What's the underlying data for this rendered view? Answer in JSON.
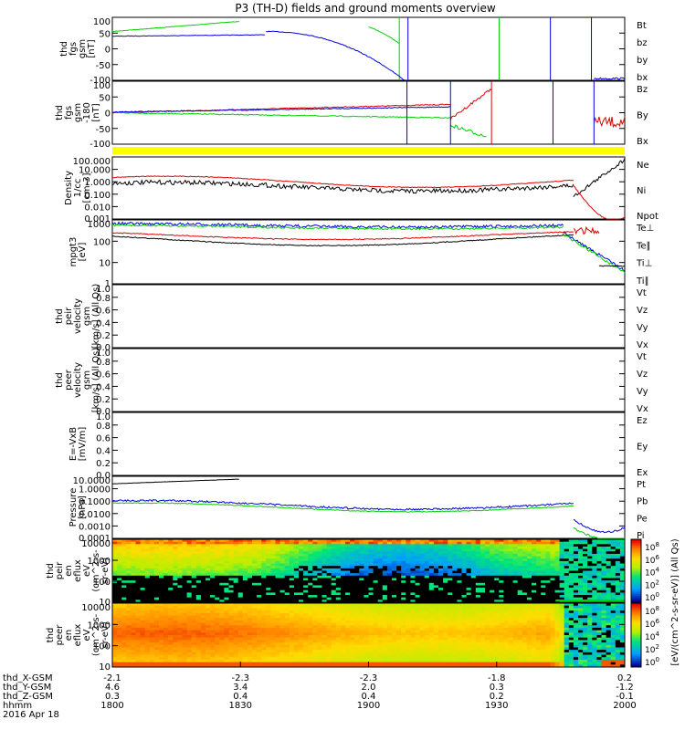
{
  "title": "P3 (TH-D) fields and ground moments overview",
  "colors": {
    "black": "#000000",
    "red": "#e00000",
    "green": "#00d000",
    "blue": "#0000e0",
    "yellow": "#ffff00"
  },
  "chart_data": [
    {
      "type": "line",
      "ylabel": [
        "thd",
        "fgs",
        "gsm",
        "[nT]"
      ],
      "ylim": [
        -100,
        100
      ],
      "yticks": [
        "100",
        "50",
        "0",
        "-50",
        "-100"
      ],
      "legend": [
        {
          "label": "Bt",
          "color": "#000000"
        },
        {
          "label": "bz",
          "color": "#e00000"
        },
        {
          "label": "by",
          "color": "#00d000"
        },
        {
          "label": "bx",
          "color": "#0000e0"
        }
      ]
    },
    {
      "type": "line",
      "ylabel": [
        "thd",
        "fgs",
        "gsm",
        "-180",
        "[nT]"
      ],
      "ylim": [
        -100,
        100
      ],
      "yticks": [
        "100",
        "50",
        "0",
        "-50",
        "-100"
      ],
      "legend": [
        {
          "label": "Bz",
          "color": "#e00000"
        },
        {
          "label": "By",
          "color": "#00d000"
        },
        {
          "label": "Bx",
          "color": "#0000e0"
        }
      ]
    },
    {
      "type": "line",
      "scale": "log",
      "ylabel": [
        "Density",
        "1/cc",
        "[cm-3]"
      ],
      "yticks": [
        "100.000",
        "10.000",
        "1.000",
        "0.100",
        "0.010",
        "0.001"
      ],
      "legend": [
        {
          "label": "Ne",
          "color": "#e00000"
        },
        {
          "label": "Ni",
          "color": "#000000"
        },
        {
          "label": "Npot",
          "color": "#0000e0"
        }
      ]
    },
    {
      "type": "line",
      "scale": "log",
      "ylabel": [
        "mpgt3",
        "[eV]"
      ],
      "yticks": [
        "1000",
        "100",
        "10",
        "1"
      ],
      "legend": [
        {
          "label": "Te⊥",
          "color": "#e00000"
        },
        {
          "label": "Te∥",
          "color": "#000000"
        },
        {
          "label": "Ti⊥",
          "color": "#0000e0"
        },
        {
          "label": "Ti∥",
          "color": "#00d000"
        }
      ]
    },
    {
      "type": "line",
      "ylabel": [
        "thd",
        "peir",
        "velocity",
        "gsm",
        "[km/s] (All Qs)"
      ],
      "ylim": [
        0,
        1
      ],
      "yticks": [
        "1.0",
        "0.8",
        "0.6",
        "0.4",
        "0.2",
        "0.0"
      ],
      "legend": [
        {
          "label": "Vt",
          "color": "#000000"
        },
        {
          "label": "Vz",
          "color": "#e00000"
        },
        {
          "label": "Vy",
          "color": "#00d000"
        },
        {
          "label": "Vx",
          "color": "#0000e0"
        }
      ]
    },
    {
      "type": "line",
      "ylabel": [
        "thd",
        "peer",
        "velocity",
        "gsm",
        "[km/s] (All Qs)"
      ],
      "ylim": [
        0,
        1
      ],
      "yticks": [
        "1.0",
        "0.8",
        "0.6",
        "0.4",
        "0.2",
        "0.0"
      ],
      "legend": [
        {
          "label": "Vt",
          "color": "#000000"
        },
        {
          "label": "Vz",
          "color": "#e00000"
        },
        {
          "label": "Vy",
          "color": "#00d000"
        },
        {
          "label": "Vx",
          "color": "#0000e0"
        }
      ]
    },
    {
      "type": "line",
      "ylabel": [
        "E=-VxB",
        "[mV/m]"
      ],
      "ylim": [
        0,
        1
      ],
      "yticks": [
        "1.0",
        "0.8",
        "0.6",
        "0.4",
        "0.2",
        "0.0"
      ],
      "legend": [
        {
          "label": "Ez",
          "color": "#e00000"
        },
        {
          "label": "Ey",
          "color": "#00d000"
        },
        {
          "label": "Ex",
          "color": "#0000e0"
        }
      ]
    },
    {
      "type": "line",
      "scale": "log",
      "ylabel": [
        "Pressure",
        "[nPa]"
      ],
      "yticks": [
        "10.0000",
        "1.0000",
        "0.1000",
        "0.0100",
        "0.0010",
        "0.0001"
      ],
      "legend": [
        {
          "label": "Pt",
          "color": "#000000"
        },
        {
          "label": "Pb",
          "color": "#e00000"
        },
        {
          "label": "Pe",
          "color": "#00d000"
        },
        {
          "label": "Pi",
          "color": "#0000e0"
        }
      ]
    },
    {
      "type": "heatmap",
      "ylabel": [
        "thd",
        "peir",
        "en",
        "eflux",
        "eV",
        "(cm^2-s-",
        "sr-eV)"
      ],
      "yticks": [
        "10000",
        "1000",
        "100",
        "10"
      ],
      "colorbar_ticks": [
        "10^8",
        "10^6",
        "10^4",
        "10^2",
        "10^0"
      ]
    },
    {
      "type": "heatmap",
      "ylabel": [
        "thd",
        "peer",
        "en",
        "eflux",
        "eV",
        "(cm^2-s-",
        "sr-eV)"
      ],
      "yticks": [
        "10000",
        "1000",
        "100",
        "10"
      ],
      "colorbar_ticks": [
        "10^8",
        "10^6",
        "10^4",
        "10^2",
        "10^0"
      ]
    }
  ],
  "colorbar_label": "[eV/(cm^2-s-sr-eV)] (All Qs)",
  "time_axis": {
    "row_labels": [
      "thd_X-GSM",
      "thd_Y-GSM",
      "thd_Z-GSM",
      "hhmm",
      "2016 Apr 18"
    ],
    "ticks": [
      {
        "x": "-2.1",
        "y": "4.6",
        "z": "0.3",
        "t": "1800"
      },
      {
        "x": "-2.3",
        "y": "3.4",
        "z": "0.4",
        "t": "1830"
      },
      {
        "x": "-2.3",
        "y": "2.0",
        "z": "0.4",
        "t": "1900"
      },
      {
        "x": "-1.8",
        "y": "0.3",
        "z": "0.2",
        "t": "1930"
      },
      {
        "x": "0.2",
        "y": "-1.2",
        "z": "-0.1",
        "t": "2000"
      }
    ]
  }
}
